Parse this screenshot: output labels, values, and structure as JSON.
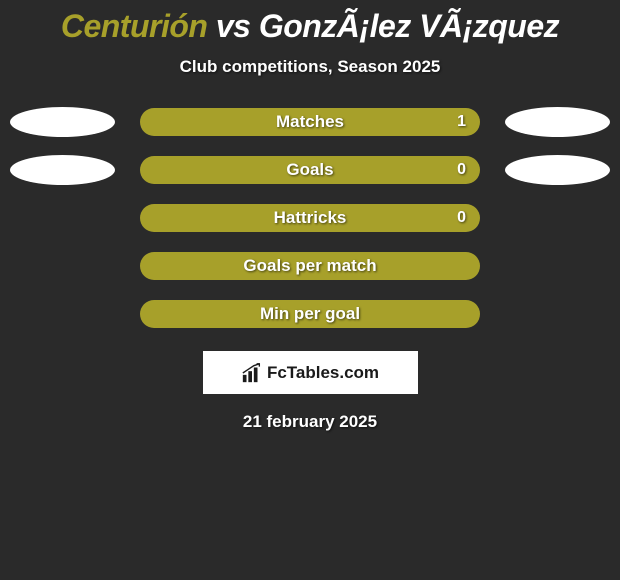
{
  "title": {
    "player1": "Centurión",
    "vs": " vs ",
    "player2": "GonzÃ¡lez VÃ¡zquez",
    "player1_color": "#a7a02a",
    "player2_color": "#ffffff"
  },
  "subtitle": "Club competitions, Season 2025",
  "rows": [
    {
      "label": "Matches",
      "value": "1",
      "show_ellipses": true
    },
    {
      "label": "Goals",
      "value": "0",
      "show_ellipses": true
    },
    {
      "label": "Hattricks",
      "value": "0",
      "show_ellipses": false
    },
    {
      "label": "Goals per match",
      "value": "",
      "show_ellipses": false
    },
    {
      "label": "Min per goal",
      "value": "",
      "show_ellipses": false
    }
  ],
  "bar_color": "#a7a02a",
  "ellipse_color": "#ffffff",
  "background_color": "#2a2a2a",
  "logo_text": "FcTables.com",
  "date": "21 february 2025",
  "title_fontsize": 32,
  "subtitle_fontsize": 17,
  "label_fontsize": 17
}
